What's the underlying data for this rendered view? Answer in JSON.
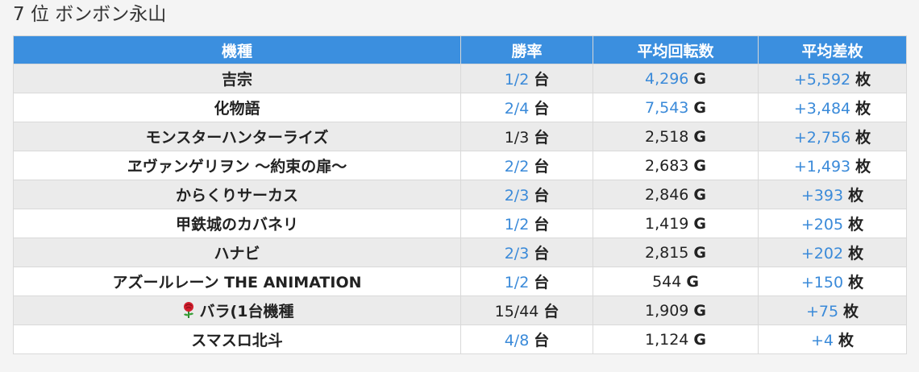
{
  "page": {
    "heading": "7 位 ボンボン永山"
  },
  "table": {
    "headers": [
      "機種",
      "勝率",
      "平均回転数",
      "平均差枚"
    ],
    "rows": [
      {
        "machine": "吉宗",
        "win": "1/2",
        "win_unit": "台",
        "win_link": true,
        "spins": "4,296",
        "spins_unit": "G",
        "spins_link": true,
        "diff": "+5,592",
        "diff_unit": "枚",
        "diff_link": true,
        "icon": ""
      },
      {
        "machine": "化物語",
        "win": "2/4",
        "win_unit": "台",
        "win_link": true,
        "spins": "7,543",
        "spins_unit": "G",
        "spins_link": true,
        "diff": "+3,484",
        "diff_unit": "枚",
        "diff_link": true,
        "icon": ""
      },
      {
        "machine": "モンスターハンターライズ",
        "win": "1/3",
        "win_unit": "台",
        "win_link": false,
        "spins": "2,518",
        "spins_unit": "G",
        "spins_link": false,
        "diff": "+2,756",
        "diff_unit": "枚",
        "diff_link": true,
        "icon": ""
      },
      {
        "machine": "ヱヴァンゲリヲン ～約束の扉～",
        "win": "2/2",
        "win_unit": "台",
        "win_link": true,
        "spins": "2,683",
        "spins_unit": "G",
        "spins_link": false,
        "diff": "+1,493",
        "diff_unit": "枚",
        "diff_link": true,
        "icon": ""
      },
      {
        "machine": "からくりサーカス",
        "win": "2/3",
        "win_unit": "台",
        "win_link": true,
        "spins": "2,846",
        "spins_unit": "G",
        "spins_link": false,
        "diff": "+393",
        "diff_unit": "枚",
        "diff_link": true,
        "icon": ""
      },
      {
        "machine": "甲鉄城のカバネリ",
        "win": "1/2",
        "win_unit": "台",
        "win_link": true,
        "spins": "1,419",
        "spins_unit": "G",
        "spins_link": false,
        "diff": "+205",
        "diff_unit": "枚",
        "diff_link": true,
        "icon": ""
      },
      {
        "machine": "ハナビ",
        "win": "2/3",
        "win_unit": "台",
        "win_link": true,
        "spins": "2,815",
        "spins_unit": "G",
        "spins_link": false,
        "diff": "+202",
        "diff_unit": "枚",
        "diff_link": true,
        "icon": ""
      },
      {
        "machine": "アズールレーン THE ANIMATION",
        "win": "1/2",
        "win_unit": "台",
        "win_link": true,
        "spins": "544",
        "spins_unit": "G",
        "spins_link": false,
        "diff": "+150",
        "diff_unit": "枚",
        "diff_link": true,
        "icon": ""
      },
      {
        "machine": "バラ(1台機種",
        "win": "15/44",
        "win_unit": "台",
        "win_link": false,
        "spins": "1,909",
        "spins_unit": "G",
        "spins_link": false,
        "diff": "+75",
        "diff_unit": "枚",
        "diff_link": true,
        "icon": "rose-icon"
      },
      {
        "machine": "スマスロ北斗",
        "win": "4/8",
        "win_unit": "台",
        "win_link": true,
        "spins": "1,124",
        "spins_unit": "G",
        "spins_link": false,
        "diff": "+4",
        "diff_unit": "枚",
        "diff_link": true,
        "icon": ""
      }
    ]
  },
  "colors": {
    "header_bg": "#3b8fdf",
    "link": "#3a8ad9",
    "row_odd": "#ebebeb",
    "row_even": "#ffffff"
  }
}
